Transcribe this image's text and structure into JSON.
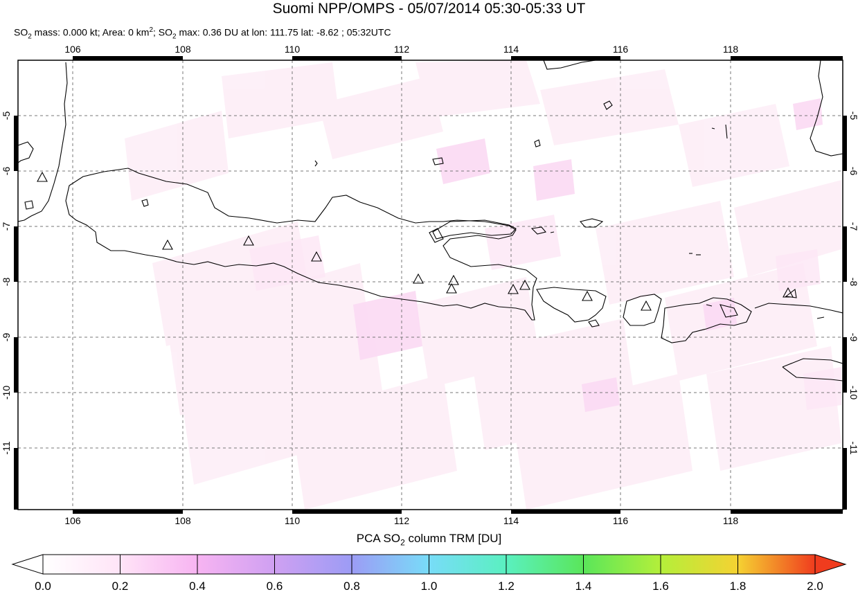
{
  "header": {
    "title": "Suomi NPP/OMPS - 05/07/2014 05:30-05:33 UT",
    "stats": {
      "so2_label": "SO",
      "so2_sub": "2",
      "mass_text": " mass: 0.000 kt; Area: 0 km",
      "area_sup": "2",
      "sep_text": "; SO",
      "so2_sub2": "2",
      "max_text": " max: 0.36 DU at lon: 111.75 lat: -8.62 ; 05:32UTC"
    }
  },
  "map": {
    "lon_labels": [
      "106",
      "108",
      "110",
      "112",
      "114",
      "116",
      "118"
    ],
    "lat_labels": [
      "-5",
      "-6",
      "-7",
      "-8",
      "-9",
      "-10",
      "-11"
    ],
    "lon_range": [
      105,
      120
    ],
    "lat_range": [
      -12,
      -4
    ],
    "volcano_marker": "triangle-icon"
  },
  "colorbar": {
    "title_prefix": "PCA SO",
    "title_sub": "2",
    "title_suffix": " column TRM [DU]",
    "tick_labels": [
      "0.0",
      "0.2",
      "0.4",
      "0.6",
      "0.8",
      "1.0",
      "1.2",
      "1.4",
      "1.6",
      "1.8",
      "2.0"
    ],
    "range": [
      0,
      2
    ],
    "colors": [
      "#ffffff",
      "#ffd6f5",
      "#f29cf2",
      "#b48cf2",
      "#8aa0f2",
      "#6ed8f7",
      "#58f0b8",
      "#5ee85a",
      "#b4f03c",
      "#f5e832",
      "#f5a82a",
      "#f03c1e"
    ]
  }
}
